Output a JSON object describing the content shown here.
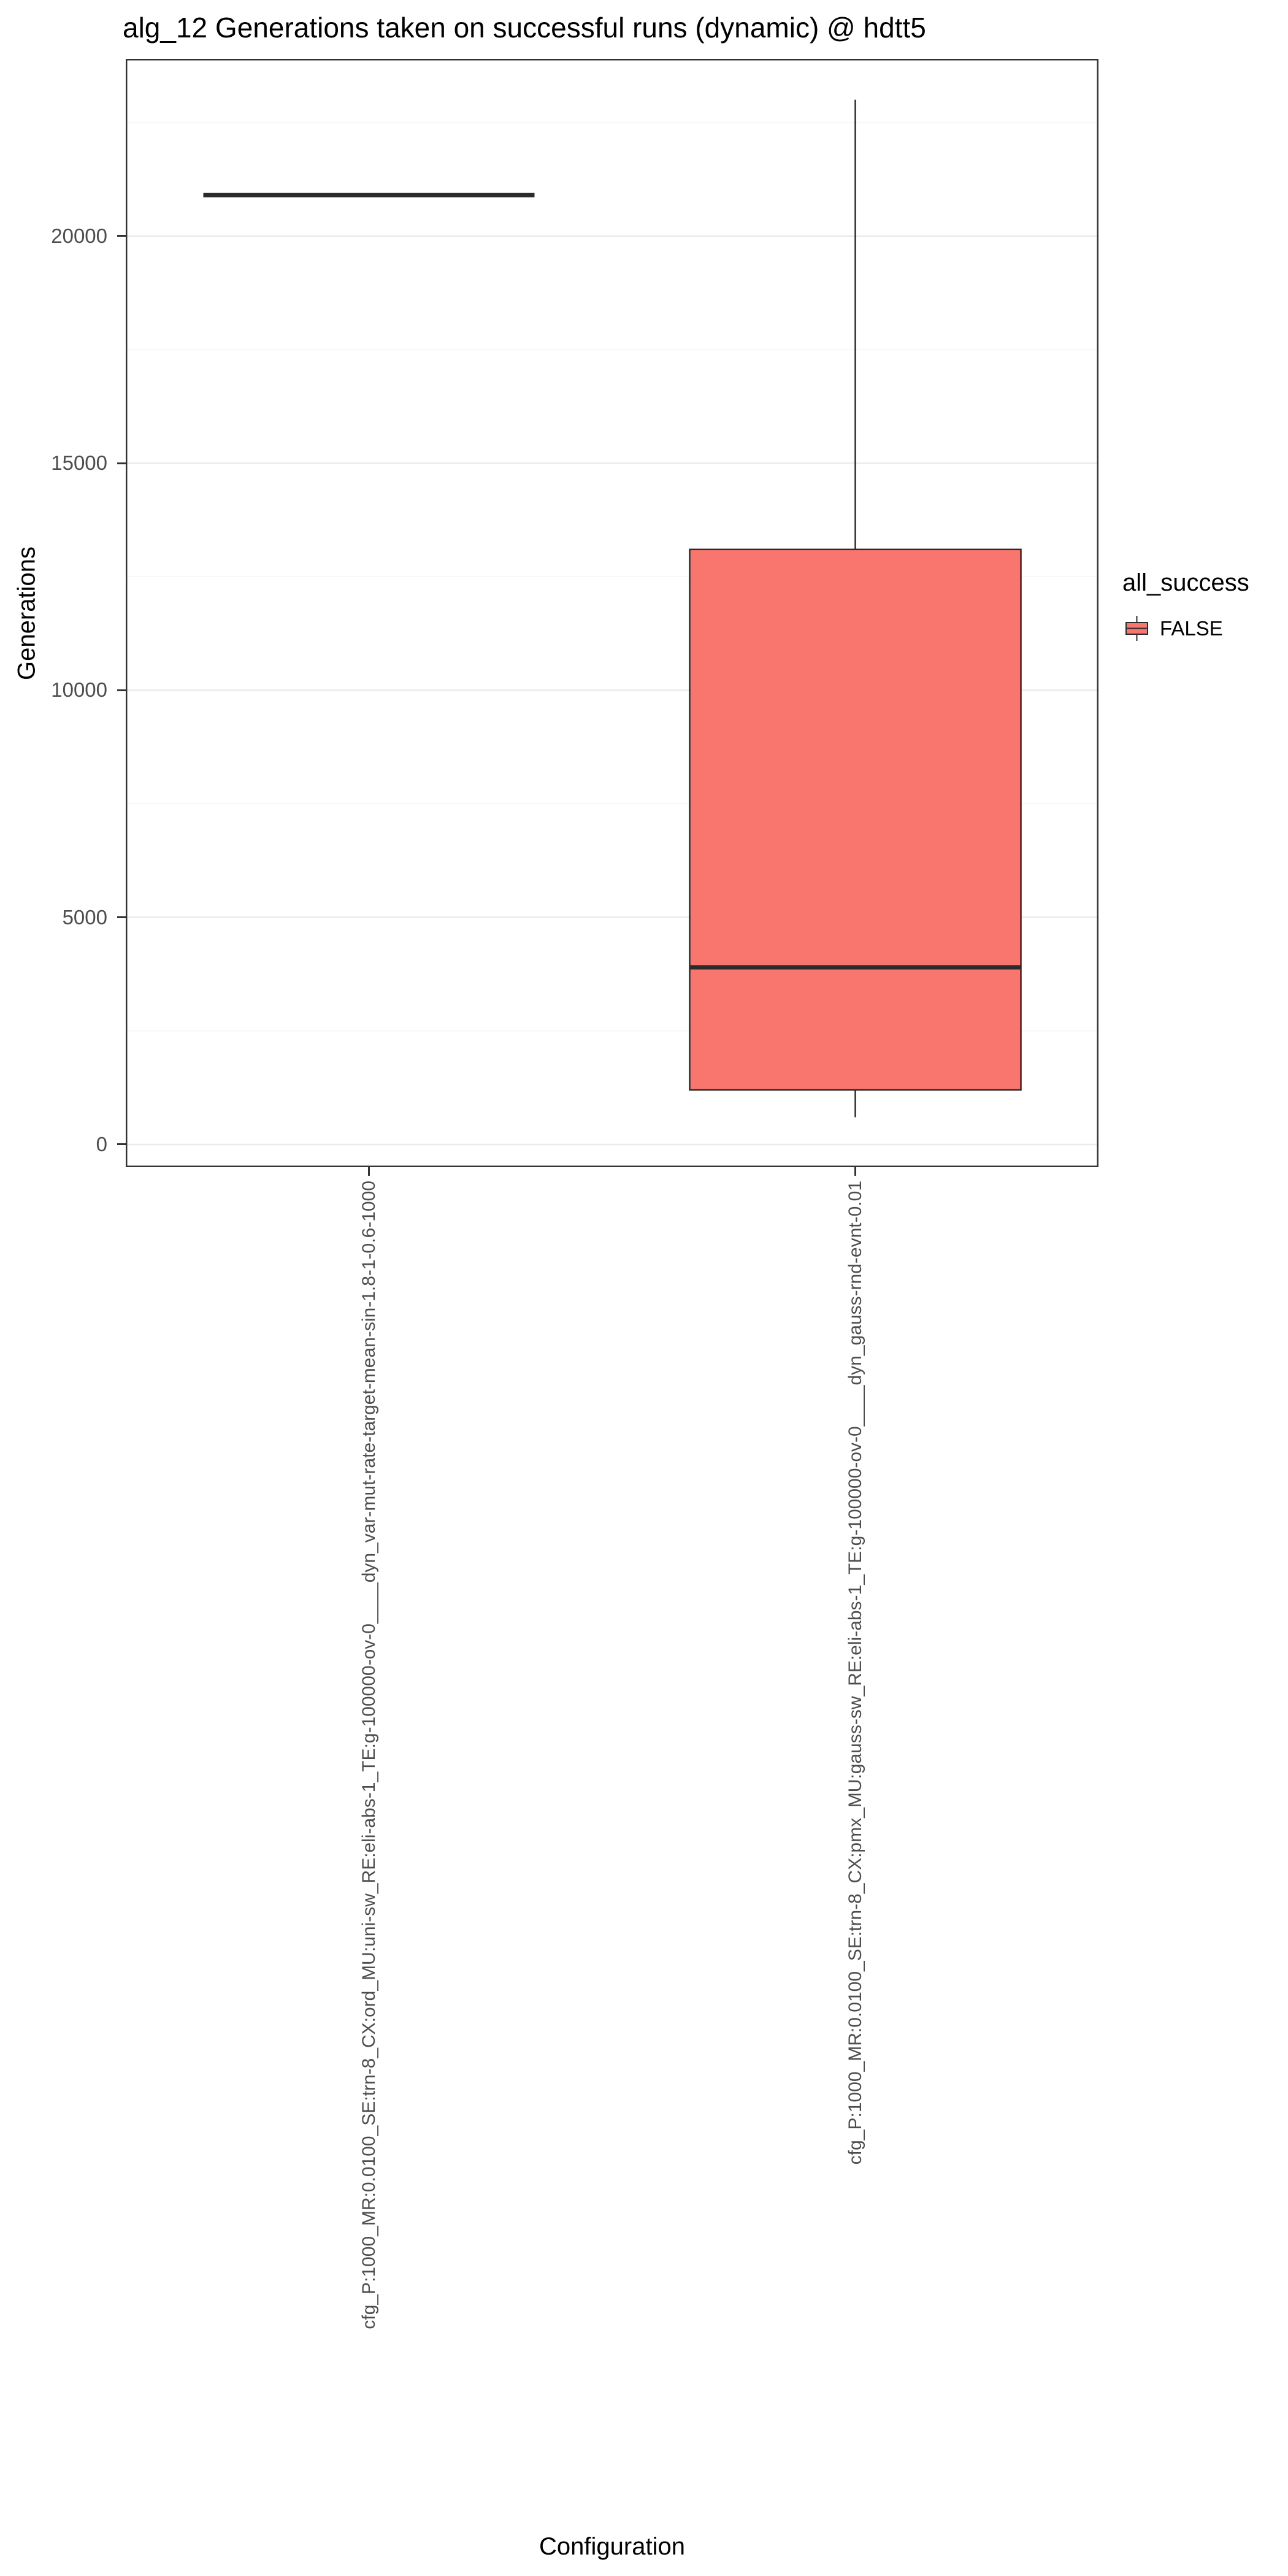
{
  "chart_data": {
    "type": "boxplot",
    "title": "alg_12 Generations taken on successful runs (dynamic) @ hdtt5",
    "xlabel": "Configuration",
    "ylabel": "Generations",
    "y_ticks": [
      0,
      5000,
      10000,
      15000,
      20000
    ],
    "y_minor_ticks": [
      2500,
      7500,
      12500,
      17500,
      22500
    ],
    "y_range": [
      -500,
      23900
    ],
    "grid": true,
    "legend_position": "right",
    "categories": [
      "cfg_P:1000_MR:0.0100_SE:trn-8_CX:ord_MU:uni-sw_RE:eli-abs-1_TE:g-100000-ov-0____dyn_var-mut-rate-target-mean-sin-1.8-1-0.6-1000",
      "cfg_P:1000_MR:0.0100_SE:trn-8_CX:pmx_MU:gauss-sw_RE:eli-abs-1_TE:g-100000-ov-0____dyn_gauss-rnd-evnt-0.01"
    ],
    "boxes": [
      {
        "category_index": 0,
        "min": 20900,
        "q1": 20900,
        "median": 20900,
        "q3": 20900,
        "max": 20900
      },
      {
        "category_index": 1,
        "min": 600,
        "q1": 1200,
        "median": 3900,
        "q3": 13100,
        "max": 23000
      }
    ],
    "legend": {
      "title": "all_success",
      "entries": [
        {
          "label": "FALSE",
          "color": "#F8766D"
        }
      ]
    },
    "colors": {
      "box_fill": "#F8766D",
      "box_stroke": "#2b2b2b",
      "median": "#2b2b2b",
      "grid_major": "#ebebeb",
      "grid_minor": "#f5f5f5",
      "panel_border": "#333333",
      "panel_background": "#ffffff",
      "tick": "#333333",
      "tick_label": "#4d4d4d"
    }
  }
}
